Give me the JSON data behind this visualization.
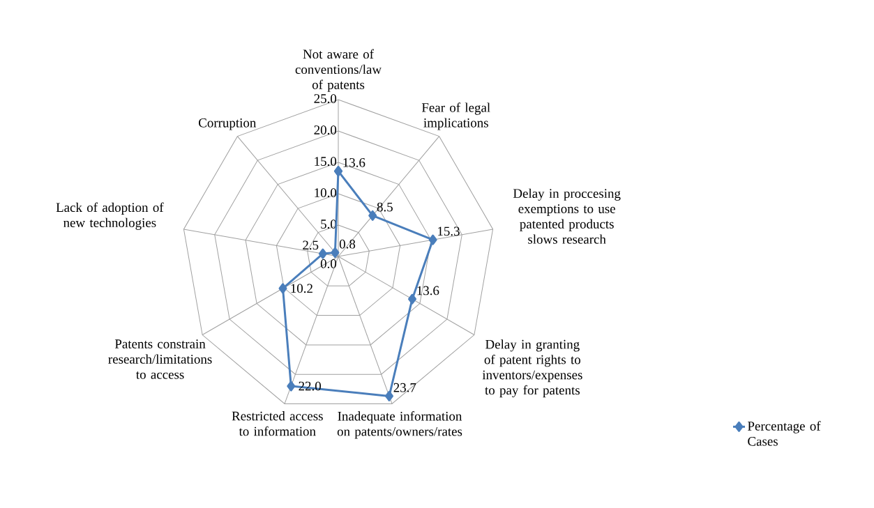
{
  "chart_data": {
    "type": "radar",
    "categories": [
      "Not aware of conventions/law of patents",
      "Fear of legal implications",
      "Delay in proccesing exemptions to use patented products slows research",
      "Delay in granting of patent rights to inventors/expenses to pay for patents",
      "Inadequate information on patents/owners/rates",
      "Restricted access to information",
      "Patents constrain research/limitations to access",
      "Lack of adoption of new technologies",
      "Corruption"
    ],
    "series": [
      {
        "name": "Percentage of Cases",
        "color": "#4a7ebb",
        "values": [
          13.6,
          8.5,
          15.3,
          13.6,
          23.7,
          22.0,
          10.2,
          2.5,
          0.8
        ],
        "value_labels": [
          "13.6",
          "8.5",
          "15.3",
          "13.6",
          "23.7",
          "22.0",
          "10.2",
          "2.5",
          "0.8"
        ]
      }
    ],
    "ylim": [
      0,
      25
    ],
    "yticks": [
      {
        "value": 0,
        "label": "0.0"
      },
      {
        "value": 5,
        "label": "5.0"
      },
      {
        "value": 10,
        "label": "10.0"
      },
      {
        "value": 15,
        "label": "15.0"
      },
      {
        "value": 20,
        "label": "20.0"
      },
      {
        "value": 25,
        "label": "25.0"
      }
    ],
    "grid": true,
    "legend": "right",
    "marker": "diamond",
    "line_style": "solid"
  }
}
